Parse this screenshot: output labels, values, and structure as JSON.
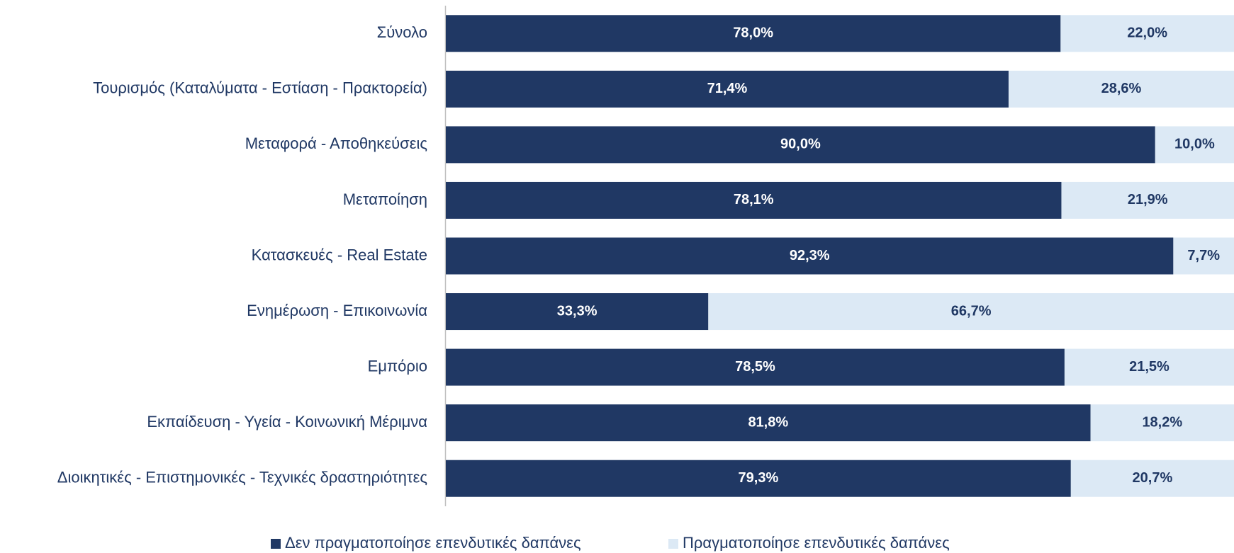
{
  "chart_data": {
    "type": "bar",
    "orientation": "horizontal",
    "stacked": true,
    "categories": [
      "Σύνολο",
      "Τουρισμός (Καταλύματα - Εστίαση - Πρακτορεία)",
      "Μεταφορά - Αποθηκεύσεις",
      "Μεταποίηση",
      "Κατασκευές - Real Estate",
      "Ενημέρωση - Επικοινωνία",
      "Εμπόριο",
      "Εκπαίδευση - Υγεία -  Κοινωνική Μέριμνα",
      "Διοικητικές - Επιστημονικές - Τεχνικές δραστηριότητες"
    ],
    "series": [
      {
        "name": "Δεν πραγματοποίησε επενδυτικές δαπάνες",
        "color": "#203864",
        "values": [
          78.0,
          71.4,
          90.0,
          78.1,
          92.3,
          33.3,
          78.5,
          81.8,
          79.3
        ],
        "value_labels": [
          "78,0%",
          "71,4%",
          "90,0%",
          "78,1%",
          "92,3%",
          "33,3%",
          "78,5%",
          "81,8%",
          "79,3%"
        ]
      },
      {
        "name": "Πραγματοποίησε επενδυτικές δαπάνες",
        "color": "#dce9f5",
        "values": [
          22.0,
          28.6,
          10.0,
          21.9,
          7.7,
          66.7,
          21.5,
          18.2,
          20.7
        ],
        "value_labels": [
          "22,0%",
          "28,6%",
          "10,0%",
          "21,9%",
          "7,7%",
          "66,7%",
          "21,5%",
          "18,2%",
          "20,7%"
        ]
      }
    ],
    "xlim": [
      0,
      100
    ],
    "legend": "bottom"
  }
}
